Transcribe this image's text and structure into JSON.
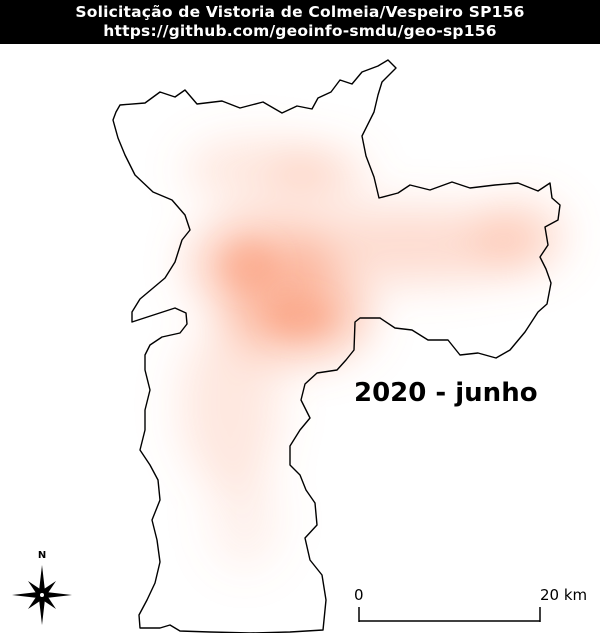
{
  "header": {
    "title": "Solicitação de Vistoria de Colmeia/Vespeiro SP156",
    "url": "https://github.com/geoinfo-smdu/geo-sp156"
  },
  "map": {
    "period_label": "2020 - junho",
    "heatmap_color": "#fa8c64",
    "boundary_color": "#000000"
  },
  "north_arrow": {
    "letter": "N",
    "icon": "compass-rose-icon"
  },
  "scale_bar": {
    "start_label": "0",
    "end_label": "20 km"
  }
}
